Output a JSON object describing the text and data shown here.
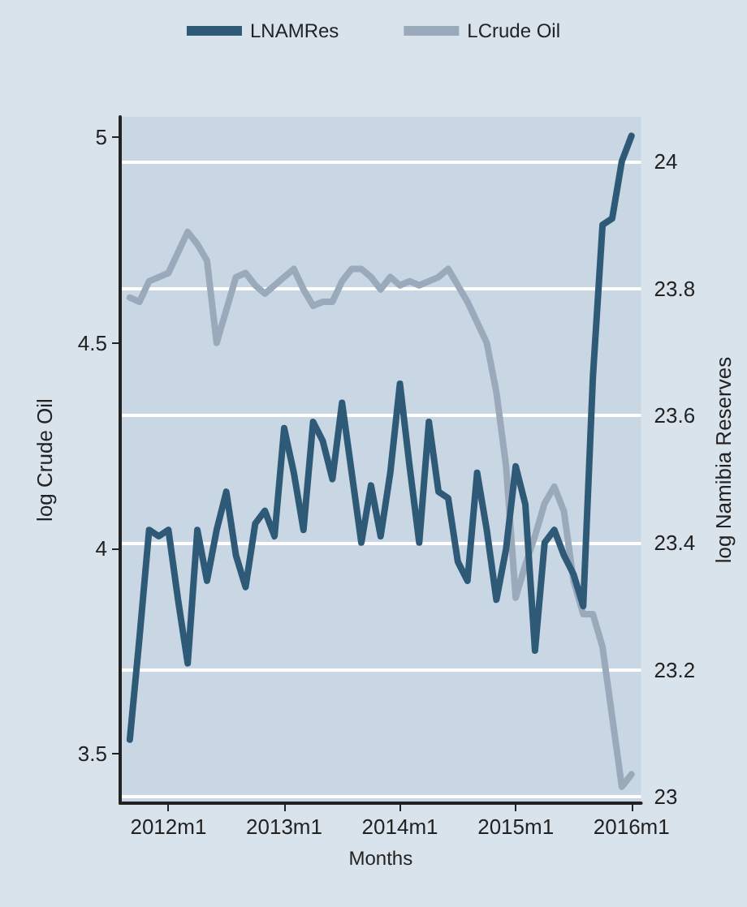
{
  "chart_data": {
    "type": "line",
    "xlabel": "Months",
    "ylabel": "log Crude Oil",
    "y2label": "log Namibia Reserves",
    "x": [
      "2011-09",
      "2011-10",
      "2011-11",
      "2011-12",
      "2012-01",
      "2012-02",
      "2012-03",
      "2012-04",
      "2012-05",
      "2012-06",
      "2012-07",
      "2012-08",
      "2012-09",
      "2012-10",
      "2012-11",
      "2012-12",
      "2013-01",
      "2013-02",
      "2013-03",
      "2013-04",
      "2013-05",
      "2013-06",
      "2013-07",
      "2013-08",
      "2013-09",
      "2013-10",
      "2013-11",
      "2013-12",
      "2014-01",
      "2014-02",
      "2014-03",
      "2014-04",
      "2014-05",
      "2014-06",
      "2014-07",
      "2014-08",
      "2014-09",
      "2014-10",
      "2014-11",
      "2014-12",
      "2015-01",
      "2015-02",
      "2015-03",
      "2015-04",
      "2015-05",
      "2015-06",
      "2015-07",
      "2015-08",
      "2015-09",
      "2015-10",
      "2015-11",
      "2015-12",
      "2016-01"
    ],
    "series": [
      {
        "name": "LNAMRes",
        "color": "#2e5a78",
        "axis": "y2",
        "values": [
          23.09,
          23.25,
          23.42,
          23.41,
          23.42,
          23.31,
          23.21,
          23.42,
          23.34,
          23.42,
          23.48,
          23.38,
          23.33,
          23.43,
          23.45,
          23.41,
          23.58,
          23.51,
          23.42,
          23.59,
          23.56,
          23.5,
          23.62,
          23.51,
          23.4,
          23.49,
          23.41,
          23.51,
          23.65,
          23.52,
          23.4,
          23.59,
          23.48,
          23.47,
          23.37,
          23.34,
          23.51,
          23.42,
          23.31,
          23.39,
          23.52,
          23.46,
          23.23,
          23.4,
          23.42,
          23.38,
          23.35,
          23.3,
          23.66,
          23.9,
          23.91,
          24.0,
          24.04
        ]
      },
      {
        "name": "LCrude Oil",
        "color": "#9aaabb",
        "values": [
          4.61,
          4.6,
          4.65,
          4.66,
          4.67,
          4.72,
          4.77,
          4.74,
          4.7,
          4.5,
          4.58,
          4.66,
          4.67,
          4.64,
          4.62,
          4.64,
          4.66,
          4.68,
          4.63,
          4.59,
          4.6,
          4.6,
          4.65,
          4.68,
          4.68,
          4.66,
          4.63,
          4.66,
          4.64,
          4.65,
          4.64,
          4.65,
          4.66,
          4.68,
          4.64,
          4.6,
          4.55,
          4.5,
          4.38,
          4.2,
          3.88,
          3.96,
          4.03,
          4.11,
          4.15,
          4.09,
          3.92,
          3.84,
          3.84,
          3.76,
          3.59,
          3.42,
          3.45
        ]
      }
    ],
    "xlim": [
      "2011-08",
      "2016-02"
    ],
    "xticks": [
      {
        "value": "2012-01",
        "label": "2012m1"
      },
      {
        "value": "2013-01",
        "label": "2013m1"
      },
      {
        "value": "2014-01",
        "label": "2014m1"
      },
      {
        "value": "2015-01",
        "label": "2015m1"
      },
      {
        "value": "2016-01",
        "label": "2016m1"
      }
    ],
    "ylim": [
      3.38,
      5.05
    ],
    "yticks": [
      3.5,
      4,
      4.5,
      5
    ],
    "y2lim": [
      22.99,
      24.07
    ],
    "y2ticks": [
      23,
      23.2,
      23.4,
      23.6,
      23.8,
      24
    ],
    "grid": "y",
    "legend": "top",
    "marker": "none",
    "line_style": "solid"
  }
}
